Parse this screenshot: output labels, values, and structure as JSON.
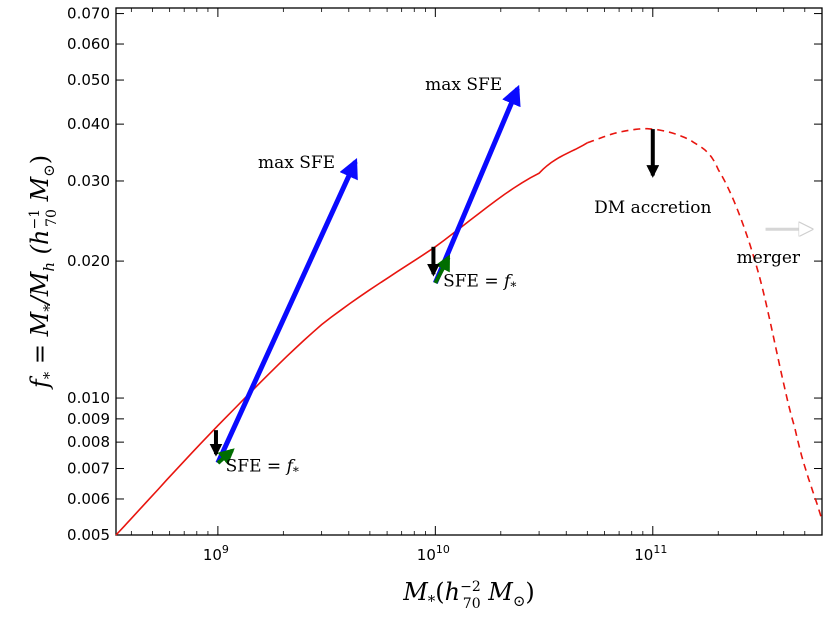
{
  "chart_data": {
    "type": "line",
    "xscale": "log",
    "yscale": "log",
    "xlim": [
      340000000,
      600000000000
    ],
    "ylim": [
      0.005,
      0.072
    ],
    "xlabel": "M*(h70^-2 M⊙)",
    "ylabel": "f* = M*/Mh (h70^-1 M⊙)",
    "x_ticks": [
      {
        "base": "10",
        "exp": "9",
        "value": 1000000000
      },
      {
        "base": "10",
        "exp": "10",
        "value": 10000000000
      },
      {
        "base": "10",
        "exp": "11",
        "value": 100000000000
      }
    ],
    "y_ticks": [
      {
        "value": 0.005,
        "label": "0.005"
      },
      {
        "value": 0.006,
        "label": "0.006"
      },
      {
        "value": 0.007,
        "label": "0.007"
      },
      {
        "value": 0.008,
        "label": "0.008"
      },
      {
        "value": 0.009,
        "label": "0.009"
      },
      {
        "value": 0.01,
        "label": "0.010"
      },
      {
        "value": 0.02,
        "label": "0.020"
      },
      {
        "value": 0.03,
        "label": "0.030"
      },
      {
        "value": 0.04,
        "label": "0.040"
      },
      {
        "value": 0.05,
        "label": "0.050"
      },
      {
        "value": 0.06,
        "label": "0.060"
      },
      {
        "value": 0.07,
        "label": "0.070"
      }
    ],
    "curve": {
      "name": "f*(M*)",
      "color": "#e8150f",
      "solid": {
        "x": [
          340000000,
          1000000000,
          3000000000,
          10000000000,
          30000000000,
          50000000000
        ],
        "y": [
          0.005,
          0.0087,
          0.0145,
          0.0215,
          0.0312,
          0.0364
        ]
      },
      "dashed": {
        "x": [
          50000000000,
          70000000000,
          100000000000,
          150000000000,
          200000000000,
          300000000000,
          450000000000,
          600000000000
        ],
        "y": [
          0.0364,
          0.0384,
          0.039,
          0.0368,
          0.0318,
          0.0195,
          0.0086,
          0.0054
        ]
      }
    },
    "arrows": [
      {
        "name": "max-sfe-arrow-1e9",
        "color": "#0a0aff",
        "from": [
          1000000000,
          0.0072
        ],
        "to": [
          4500000000,
          0.0348
        ]
      },
      {
        "name": "sfe-arrow-1e9",
        "color": "#006d00",
        "from": [
          1000000000,
          0.0072
        ],
        "to": [
          1250000000,
          0.0079
        ]
      },
      {
        "name": "dm-arrow-1e9",
        "color": "#000000",
        "from": [
          980000000,
          0.0085
        ],
        "to": [
          980000000,
          0.0072
        ]
      },
      {
        "name": "max-sfe-arrow-1e10",
        "color": "#0a0aff",
        "from": [
          10000000000,
          0.0179
        ],
        "to": [
          25000000000,
          0.0504
        ]
      },
      {
        "name": "sfe-arrow-1e10",
        "color": "#006d00",
        "from": [
          10000000000,
          0.0179
        ],
        "to": [
          12000000000,
          0.0212
        ]
      },
      {
        "name": "dm-arrow-1e10",
        "color": "#000000",
        "from": [
          9800000000,
          0.0215
        ],
        "to": [
          9800000000,
          0.0179
        ]
      },
      {
        "name": "dm-accretion-arrow",
        "color": "#000000",
        "from": [
          100000000000,
          0.039
        ],
        "to": [
          100000000000,
          0.0295
        ]
      },
      {
        "name": "merger-arrow",
        "color": "#d6d6d6",
        "from": [
          330000000000,
          0.0235
        ],
        "to": [
          570000000000,
          0.0235
        ]
      }
    ],
    "annotations": [
      {
        "name": "annot-max-sfe-1",
        "text": "max SFE",
        "x": 2300000000,
        "y": 0.032
      },
      {
        "name": "annot-max-sfe-2",
        "text": "max SFE",
        "x": 13500000000,
        "y": 0.0475
      },
      {
        "name": "annot-sfe-1",
        "text": "SFE = f*",
        "x": 1600000000,
        "y": 0.0069
      },
      {
        "name": "annot-sfe-2",
        "text": "SFE = f*",
        "x": 16000000000,
        "y": 0.0176
      },
      {
        "name": "annot-dm-accretion",
        "text": "DM accretion",
        "x": 100000000000,
        "y": 0.0255
      },
      {
        "name": "annot-merger",
        "text": "merger",
        "x": 340000000000,
        "y": 0.0198
      }
    ]
  }
}
